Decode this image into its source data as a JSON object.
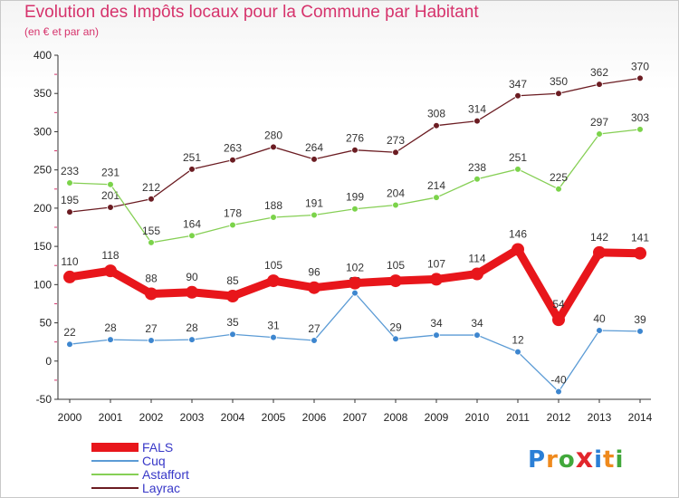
{
  "title": "Evolution des Impôts locaux pour la Commune par Habitant",
  "subtitle": "(en € et par an)",
  "logo": {
    "text": "Proxiti",
    "letters": [
      {
        "ch": "P",
        "color": "#2b7fd6"
      },
      {
        "ch": "r",
        "color": "#ef8a1e"
      },
      {
        "ch": "o",
        "color": "#41a83b"
      },
      {
        "ch": "x",
        "color": "#e2262c"
      },
      {
        "ch": "i",
        "color": "#2b7fd6"
      },
      {
        "ch": "t",
        "color": "#ef8a1e"
      },
      {
        "ch": "i",
        "color": "#41a83b"
      }
    ]
  },
  "chart_data": {
    "type": "line",
    "title": "Evolution des Impôts locaux pour la Commune par Habitant",
    "subtitle": "(en € et par an)",
    "categories": [
      "2000",
      "2001",
      "2002",
      "2003",
      "2004",
      "2005",
      "2006",
      "2007",
      "2008",
      "2009",
      "2010",
      "2011",
      "2012",
      "2013",
      "2014"
    ],
    "ylim": [
      -50,
      400
    ],
    "yticks": [
      -50,
      0,
      50,
      100,
      150,
      200,
      250,
      300,
      350,
      400
    ],
    "grid": false,
    "legend_position": "bottom-left",
    "series": [
      {
        "name": "Layrac",
        "color": "#6b1c22",
        "marker_color": "#6b1c22",
        "emphasis": false,
        "values": [
          195,
          201,
          212,
          251,
          263,
          280,
          264,
          276,
          273,
          308,
          314,
          347,
          350,
          362,
          370
        ]
      },
      {
        "name": "Astaffort",
        "color": "#86cf55",
        "marker_color": "#7bd34a",
        "emphasis": false,
        "values": [
          233,
          231,
          155,
          164,
          178,
          188,
          191,
          199,
          204,
          214,
          238,
          251,
          225,
          297,
          303
        ]
      },
      {
        "name": "Cuq",
        "color": "#5b9bd5",
        "marker_color": "#3d86cf",
        "emphasis": false,
        "values": [
          22,
          28,
          27,
          28,
          35,
          31,
          27,
          89,
          29,
          34,
          34,
          12,
          -40,
          40,
          39
        ]
      },
      {
        "name": "FALS",
        "color": "#e8161b",
        "marker_color": "#e8161b",
        "emphasis": true,
        "values": [
          110,
          118,
          88,
          90,
          85,
          105,
          96,
          102,
          105,
          107,
          114,
          146,
          54,
          142,
          141
        ]
      }
    ],
    "legend_order": [
      "FALS",
      "Cuq",
      "Astaffort",
      "Layrac"
    ]
  }
}
